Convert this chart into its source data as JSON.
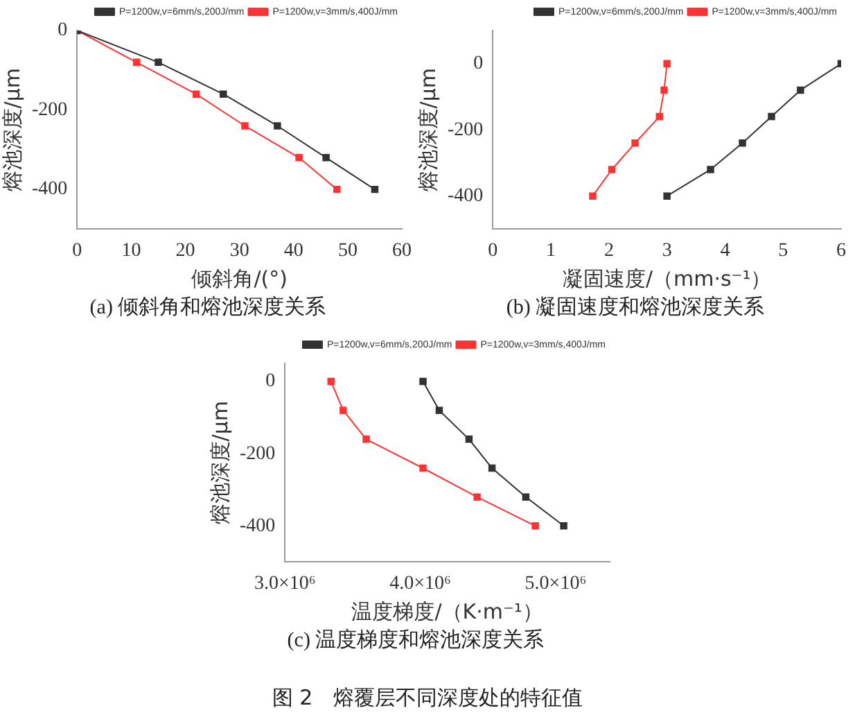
{
  "chart_data": [
    {
      "type": "line",
      "xlabel": "倾斜角/(°)",
      "ylabel": "熔池深度/μm",
      "annotations": [
        "(a) 倾斜角和熔池深度关系"
      ],
      "xlim": [
        0,
        60
      ],
      "xticks": [
        0,
        10,
        20,
        30,
        40,
        50,
        60
      ],
      "ylim": [
        -500,
        0
      ],
      "yticks": [
        0,
        -200,
        -400
      ],
      "legend": "top right",
      "marker": "square",
      "grid": false,
      "series": [
        {
          "name": "P=1200w,v=6mm/s,200J/mm",
          "color": "#333333",
          "x": [
            0,
            15,
            27,
            37,
            46,
            55
          ],
          "values": [
            0,
            -80,
            -160,
            -240,
            -320,
            -400
          ]
        },
        {
          "name": "P=1200w,v=3mm/s,400J/mm",
          "color": "#ff3333",
          "x": [
            0,
            11,
            22,
            31,
            41,
            48
          ],
          "values": [
            0,
            -80,
            -160,
            -240,
            -320,
            -400
          ]
        }
      ]
    },
    {
      "type": "line",
      "xlabel": "凝固速度/（mm·s⁻¹）",
      "ylabel": "熔池深度/μm",
      "annotations": [
        "(b) 凝固速度和熔池深度关系"
      ],
      "xlim": [
        0,
        6
      ],
      "xticks": [
        0,
        1,
        2,
        3,
        4,
        5,
        6
      ],
      "ylim": [
        -500,
        100
      ],
      "yticks": [
        0,
        -200,
        -400
      ],
      "legend": "top right",
      "marker": "square",
      "grid": false,
      "series": [
        {
          "name": "P=1200w,v=6mm/s,200J/mm",
          "color": "#333333",
          "x": [
            6,
            5.3,
            4.8,
            4.3,
            3.75,
            3.0
          ],
          "values": [
            0,
            -80,
            -160,
            -240,
            -320,
            -400
          ]
        },
        {
          "name": "P=1200w,v=3mm/s,400J/mm",
          "color": "#ff3333",
          "x": [
            3.0,
            2.95,
            2.87,
            2.45,
            2.05,
            1.72
          ],
          "values": [
            0,
            -80,
            -160,
            -240,
            -320,
            -400
          ]
        }
      ]
    },
    {
      "type": "line",
      "xlabel": "温度梯度/（K·m⁻¹）",
      "ylabel": "熔池深度/μm",
      "annotations": [
        "(c) 温度梯度和熔池深度关系",
        "图 2　熔覆层不同深度处的特征值"
      ],
      "xlim": [
        3000000,
        5400000
      ],
      "xticks": [
        {
          "value": 3000000,
          "label": "3.0×10⁶"
        },
        {
          "value": 4000000,
          "label": "4.0×10⁶"
        },
        {
          "value": 5000000,
          "label": "5.0×10⁶"
        }
      ],
      "ylim": [
        -500,
        50
      ],
      "yticks": [
        0,
        -200,
        -400
      ],
      "legend": "top right",
      "marker": "square",
      "grid": false,
      "series": [
        {
          "name": "P=1200w,v=6mm/s,200J/mm",
          "color": "#333333",
          "x": [
            4020000,
            4140000,
            4360000,
            4530000,
            4780000,
            5060000
          ],
          "values": [
            0,
            -80,
            -160,
            -240,
            -320,
            -400
          ]
        },
        {
          "name": "P=1200w,v=3mm/s,400J/mm",
          "color": "#ff3333",
          "x": [
            3340000,
            3430000,
            3600000,
            4020000,
            4420000,
            4850000
          ],
          "values": [
            0,
            -80,
            -160,
            -240,
            -320,
            -400
          ]
        }
      ]
    }
  ]
}
